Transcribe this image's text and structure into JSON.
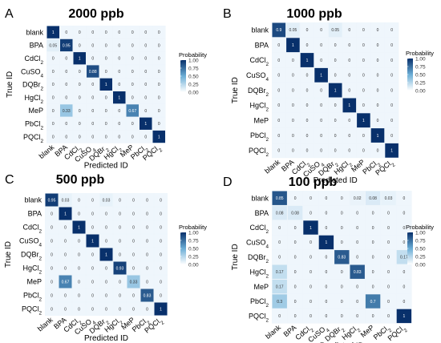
{
  "chart_data": [
    {
      "type": "heatmap",
      "panel_letter": "A",
      "title": "2000 ppb",
      "xlabel": "Predicted ID",
      "ylabel": "True ID",
      "legend_title": "Probability",
      "legend_ticks": [
        "1.00",
        "0.75",
        "0.50",
        "0.25",
        "0.00"
      ],
      "rows": [
        "blank",
        "BPA",
        "CdCl2",
        "CuSO4",
        "DQBr2",
        "HgCl2",
        "MeP",
        "PbCl2",
        "PQCl2"
      ],
      "cols": [
        "blank",
        "BPA",
        "CdCl2",
        "CuSO4",
        "DQBr2",
        "HgCl2",
        "MeP",
        "PbCl2",
        "PQCl2"
      ],
      "labels": [
        [
          "1",
          "0",
          "0",
          "0",
          "0",
          "0",
          "0",
          "0",
          "0"
        ],
        [
          "0.05",
          "0.95",
          "0",
          "0",
          "0",
          "0",
          "0",
          "0",
          "0"
        ],
        [
          "0",
          "0",
          "1",
          "0",
          "0",
          "0",
          "0",
          "0",
          "0"
        ],
        [
          "0",
          "0",
          "0",
          "0.88",
          "0",
          "0",
          "0",
          "0",
          "0"
        ],
        [
          "0",
          "0",
          "0",
          "0",
          "1",
          "0",
          "0",
          "0",
          "0"
        ],
        [
          "0",
          "0",
          "0",
          "0",
          "0",
          "1",
          "0",
          "0",
          "0"
        ],
        [
          "0",
          "0.33",
          "0",
          "0",
          "0",
          "0",
          "0.67",
          "0",
          "0"
        ],
        [
          "0",
          "0",
          "0",
          "0",
          "0",
          "0",
          "0",
          "1",
          "0"
        ],
        [
          "0",
          "0",
          "0",
          "0",
          "0",
          "0",
          "0",
          "0",
          "1"
        ]
      ]
    },
    {
      "type": "heatmap",
      "panel_letter": "B",
      "title": "1000 ppb",
      "xlabel": "Predicted ID",
      "ylabel": "True ID",
      "legend_title": "Probability",
      "legend_ticks": [
        "1.00",
        "0.75",
        "0.50",
        "0.25",
        "0.00"
      ],
      "rows": [
        "blank",
        "BPA",
        "CdCl2",
        "CuSO4",
        "DQBr2",
        "HgCl2",
        "MeP",
        "PbCl2",
        "PQCl2"
      ],
      "cols": [
        "blank",
        "BPA",
        "CdCl2",
        "CuSO4",
        "DQBr2",
        "HgCl2",
        "MeP",
        "PbCl2",
        "PQCl2"
      ],
      "labels": [
        [
          "0.9",
          "0.05",
          "0",
          "0",
          "0.05",
          "0",
          "0",
          "0",
          "0"
        ],
        [
          "0",
          "1",
          "0",
          "0",
          "0",
          "0",
          "0",
          "0",
          "0"
        ],
        [
          "0",
          "0",
          "1",
          "0",
          "0",
          "0",
          "0",
          "0",
          "0"
        ],
        [
          "0",
          "0",
          "0",
          "1",
          "0",
          "0",
          "0",
          "0",
          "0"
        ],
        [
          "0",
          "0",
          "0",
          "0",
          "1",
          "0",
          "0",
          "0",
          "0"
        ],
        [
          "0",
          "0",
          "0",
          "0",
          "0",
          "1",
          "0",
          "0",
          "0"
        ],
        [
          "0",
          "0",
          "0",
          "0",
          "0",
          "0",
          "1",
          "0",
          "0"
        ],
        [
          "0",
          "0",
          "0",
          "0",
          "0",
          "0",
          "0",
          "1",
          "0"
        ],
        [
          "0",
          "0",
          "0",
          "0",
          "0",
          "0",
          "0",
          "0",
          "1"
        ]
      ]
    },
    {
      "type": "heatmap",
      "panel_letter": "C",
      "title": "500 ppb",
      "xlabel": "Predicted ID",
      "ylabel": "True ID",
      "legend_title": "Probability",
      "legend_ticks": [
        "1.00",
        "0.75",
        "0.50",
        "0.25",
        "0.00"
      ],
      "rows": [
        "blank",
        "BPA",
        "CdCl2",
        "CuSO4",
        "DQBr2",
        "HgCl2",
        "MeP",
        "PbCl2",
        "PQCl2"
      ],
      "cols": [
        "blank",
        "BPA",
        "CdCl2",
        "CuSO4",
        "DQBr2",
        "HgCl2",
        "MeP",
        "PbCl2",
        "PQCl2"
      ],
      "labels": [
        [
          "0.95",
          "0.03",
          "0",
          "0",
          "0.03",
          "0",
          "0",
          "0",
          "0"
        ],
        [
          "0",
          "1",
          "0",
          "0",
          "0",
          "0",
          "0",
          "0",
          "0"
        ],
        [
          "0",
          "0",
          "1",
          "0",
          "0",
          "0",
          "0",
          "0",
          "0"
        ],
        [
          "0",
          "0",
          "0",
          "1",
          "0",
          "0",
          "0",
          "0",
          "0"
        ],
        [
          "0",
          "0",
          "0",
          "0",
          "1",
          "0",
          "0",
          "0",
          "0"
        ],
        [
          "0",
          "0",
          "0",
          "0",
          "0",
          "0.93",
          "0",
          "0",
          "0"
        ],
        [
          "0",
          "0.67",
          "0",
          "0",
          "0",
          "0",
          "0.33",
          "0",
          "0"
        ],
        [
          "0",
          "0",
          "0",
          "0",
          "0",
          "0",
          "0",
          "0.83",
          "0"
        ],
        [
          "0",
          "0",
          "0",
          "0",
          "0",
          "0",
          "0",
          "0",
          "1"
        ]
      ]
    },
    {
      "type": "heatmap",
      "panel_letter": "D",
      "title": "100 ppb",
      "xlabel": "Predicted ID",
      "ylabel": "True ID",
      "legend_title": "Probability",
      "legend_ticks": [
        "1.00",
        "0.75",
        "0.50",
        "0.25",
        "0.00"
      ],
      "rows": [
        "blank",
        "BPA",
        "CdCl2",
        "CuSO4",
        "DQBr2",
        "HgCl2",
        "MeP",
        "PbCl2",
        "PQCl2"
      ],
      "cols": [
        "blank",
        "BPA",
        "CdCl2",
        "CuSO4",
        "DQBr2",
        "HgCl2",
        "MeP",
        "PbCl2",
        "PQCl2"
      ],
      "labels": [
        [
          "0.85",
          "0",
          "0",
          "0",
          "0",
          "0.02",
          "0.08",
          "0.03",
          "0"
        ],
        [
          "0.08",
          "0.08",
          "0",
          "0",
          "0",
          "0",
          "0",
          "0",
          "0"
        ],
        [
          "0",
          "0",
          "1",
          "0",
          "0",
          "0",
          "0",
          "0",
          "0"
        ],
        [
          "0",
          "0",
          "0",
          "1",
          "0",
          "0",
          "0",
          "0",
          "0"
        ],
        [
          "0",
          "0",
          "0",
          "0",
          "0.83",
          "0",
          "0",
          "0",
          "0.17"
        ],
        [
          "0.17",
          "0",
          "0",
          "0",
          "0",
          "0.83",
          "0",
          "0",
          "0"
        ],
        [
          "0.17",
          "0",
          "0",
          "0",
          "0",
          "0",
          "0",
          "0",
          "0"
        ],
        [
          "0.3",
          "0",
          "0",
          "0",
          "0",
          "0",
          "0.7",
          "0",
          "0"
        ],
        [
          "0",
          "0",
          "0",
          "0",
          "0",
          "0",
          "0",
          "0",
          "1"
        ]
      ]
    }
  ]
}
